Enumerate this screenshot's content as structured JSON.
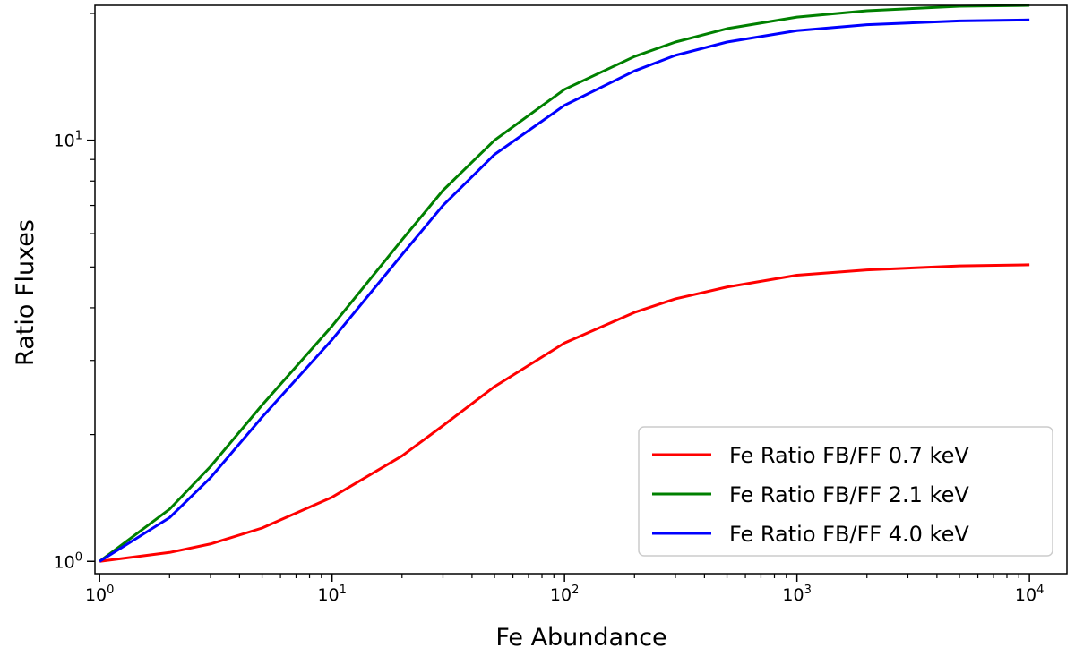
{
  "chart_data": {
    "type": "line",
    "title": "",
    "xlabel": "Fe Abundance",
    "ylabel": "Ratio Fluxes",
    "xscale": "log",
    "yscale": "log",
    "xlim": [
      0.955,
      14500
    ],
    "ylim": [
      0.935,
      20.9
    ],
    "grid": false,
    "legend_position": "lower-right",
    "x_ticks": [
      {
        "value": 1,
        "base": "10",
        "exp": "0"
      },
      {
        "value": 10,
        "base": "10",
        "exp": "1"
      },
      {
        "value": 100,
        "base": "10",
        "exp": "2"
      },
      {
        "value": 1000,
        "base": "10",
        "exp": "3"
      },
      {
        "value": 10000,
        "base": "10",
        "exp": "4"
      }
    ],
    "y_ticks": [
      {
        "value": 1,
        "base": "10",
        "exp": "0"
      },
      {
        "value": 10,
        "base": "10",
        "exp": "1"
      }
    ],
    "x": [
      1,
      2,
      3,
      5,
      10,
      20,
      30,
      50,
      100,
      200,
      300,
      500,
      1000,
      2000,
      5000,
      10000
    ],
    "series": [
      {
        "name": "Fe Ratio FB/FF 0.7 keV",
        "color": "#ff0000",
        "values": [
          1.0,
          1.05,
          1.1,
          1.2,
          1.42,
          1.78,
          2.1,
          2.6,
          3.3,
          3.9,
          4.2,
          4.48,
          4.78,
          4.92,
          5.03,
          5.06
        ]
      },
      {
        "name": "Fe Ratio FB/FF 2.1 keV",
        "color": "#008000",
        "values": [
          1.0,
          1.33,
          1.68,
          2.35,
          3.62,
          5.8,
          7.6,
          10.0,
          13.2,
          15.8,
          17.1,
          18.4,
          19.6,
          20.3,
          20.8,
          20.9
        ]
      },
      {
        "name": "Fe Ratio FB/FF 4.0 keV",
        "color": "#0000ff",
        "values": [
          1.0,
          1.27,
          1.58,
          2.2,
          3.36,
          5.35,
          7.0,
          9.25,
          12.1,
          14.6,
          15.9,
          17.1,
          18.2,
          18.8,
          19.2,
          19.3
        ]
      }
    ]
  }
}
